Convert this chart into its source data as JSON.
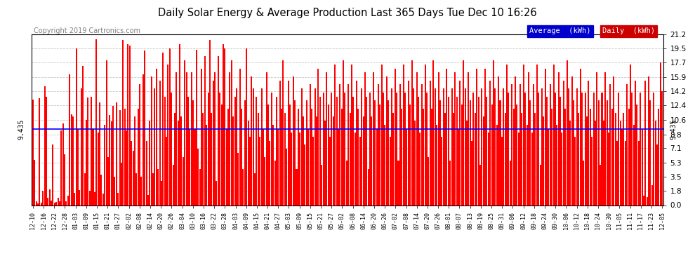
{
  "title": "Daily Solar Energy & Average Production Last 365 Days Tue Dec 10 16:26",
  "copyright": "Copyright 2019 Cartronics.com",
  "average_value": 9.435,
  "average_label": "9.435",
  "yticks": [
    0.0,
    1.8,
    3.5,
    5.3,
    7.1,
    8.8,
    10.6,
    12.4,
    14.2,
    15.9,
    17.7,
    19.5,
    21.2
  ],
  "ymax": 21.2,
  "bar_color": "#FF0000",
  "avg_line_color": "#0000FF",
  "background_color": "#FFFFFF",
  "plot_bg_color": "#FFFFFF",
  "grid_color": "#BBBBBB",
  "legend_avg_bg": "#0000CC",
  "legend_daily_bg": "#CC0000",
  "legend_text_color": "#FFFFFF",
  "title_color": "#000000",
  "copyright_color": "#808080",
  "avg_annot_color": "#000000",
  "xtick_labels": [
    "12-10",
    "12-16",
    "12-22",
    "12-28",
    "01-03",
    "01-09",
    "01-15",
    "01-21",
    "01-27",
    "02-02",
    "02-08",
    "02-14",
    "02-20",
    "02-26",
    "03-04",
    "03-10",
    "03-16",
    "03-22",
    "03-28",
    "04-03",
    "04-09",
    "04-15",
    "04-21",
    "04-27",
    "05-03",
    "05-09",
    "05-15",
    "05-21",
    "05-27",
    "06-02",
    "06-08",
    "06-14",
    "06-20",
    "06-26",
    "07-02",
    "07-08",
    "07-14",
    "07-20",
    "07-26",
    "08-01",
    "08-07",
    "08-13",
    "08-19",
    "08-25",
    "08-31",
    "09-06",
    "09-12",
    "09-18",
    "09-24",
    "09-30",
    "10-06",
    "10-12",
    "10-18",
    "10-24",
    "10-30",
    "11-05",
    "11-11",
    "11-17",
    "11-23",
    "12-05"
  ],
  "daily_values": [
    13.1,
    5.6,
    0.5,
    0.2,
    13.3,
    0.3,
    1.8,
    14.8,
    13.5,
    0.9,
    2.0,
    0.6,
    7.5,
    0.3,
    0.4,
    0.9,
    0.5,
    9.3,
    10.2,
    6.3,
    0.5,
    1.2,
    16.3,
    11.3,
    11.0,
    1.5,
    19.5,
    9.5,
    1.9,
    14.5,
    17.3,
    4.0,
    10.6,
    13.4,
    1.8,
    13.5,
    9.5,
    1.6,
    20.6,
    9.0,
    12.8,
    3.8,
    1.4,
    10.0,
    18.0,
    6.0,
    11.2,
    10.4,
    12.3,
    3.5,
    12.8,
    1.5,
    11.8,
    5.3,
    20.5,
    12.0,
    9.3,
    20.0,
    19.8,
    8.0,
    6.8,
    11.0,
    4.0,
    12.0,
    15.0,
    3.5,
    16.3,
    19.2,
    8.0,
    1.3,
    10.5,
    16.0,
    4.0,
    14.5,
    17.0,
    4.5,
    15.5,
    3.0,
    19.0,
    13.5,
    8.5,
    17.5,
    19.5,
    14.0,
    5.0,
    11.5,
    16.5,
    10.5,
    20.0,
    11.0,
    6.0,
    18.0,
    16.5,
    13.5,
    9.5,
    16.5,
    13.0,
    9.5,
    19.3,
    7.0,
    4.5,
    17.0,
    11.5,
    18.5,
    10.0,
    14.0,
    20.5,
    11.5,
    15.5,
    16.5,
    3.0,
    18.5,
    14.0,
    12.5,
    20.0,
    19.5,
    9.5,
    12.0,
    16.5,
    18.0,
    11.0,
    13.5,
    14.5,
    6.5,
    17.0,
    12.0,
    4.5,
    13.0,
    19.5,
    10.5,
    8.5,
    16.0,
    14.5,
    4.0,
    13.5,
    11.5,
    8.5,
    14.5,
    9.5,
    6.0,
    16.5,
    12.5,
    8.0,
    14.0,
    10.0,
    5.5,
    13.5,
    9.5,
    15.5,
    12.0,
    18.0,
    11.5,
    7.0,
    15.5,
    12.5,
    9.0,
    16.0,
    13.0,
    4.5,
    12.0,
    9.0,
    14.5,
    11.0,
    7.5,
    13.0,
    9.5,
    15.0,
    12.0,
    8.5,
    14.5,
    11.0,
    17.0,
    13.5,
    5.0,
    14.0,
    10.5,
    16.5,
    12.5,
    8.5,
    14.0,
    11.0,
    17.5,
    13.5,
    9.5,
    15.0,
    12.0,
    18.0,
    14.0,
    5.5,
    15.0,
    11.5,
    17.5,
    13.5,
    9.0,
    15.5,
    12.0,
    8.5,
    14.5,
    11.0,
    16.5,
    13.5,
    4.5,
    14.0,
    11.0,
    16.5,
    13.0,
    9.5,
    15.0,
    12.5,
    17.5,
    14.0,
    10.0,
    16.0,
    13.0,
    8.5,
    14.5,
    11.5,
    17.0,
    14.0,
    5.5,
    15.0,
    12.0,
    17.5,
    14.0,
    9.5,
    15.5,
    12.5,
    18.0,
    14.5,
    10.5,
    16.5,
    13.5,
    9.0,
    15.0,
    12.0,
    17.5,
    14.0,
    6.0,
    15.5,
    12.0,
    18.0,
    14.5,
    10.0,
    16.5,
    13.0,
    8.5,
    14.5,
    11.5,
    17.0,
    13.5,
    5.5,
    14.5,
    11.5,
    16.5,
    13.5,
    9.5,
    15.5,
    12.5,
    18.0,
    14.5,
    10.5,
    16.5,
    13.0,
    8.0,
    14.0,
    11.5,
    17.0,
    13.5,
    5.0,
    14.5,
    11.0,
    17.0,
    13.5,
    9.0,
    15.5,
    12.5,
    18.0,
    14.5,
    10.0,
    16.0,
    13.0,
    8.5,
    14.5,
    11.5,
    17.5,
    14.0,
    5.5,
    15.0,
    12.0,
    16.0,
    12.5,
    9.0,
    15.0,
    11.5,
    17.5,
    14.0,
    10.0,
    16.5,
    13.0,
    9.0,
    15.0,
    11.5,
    17.5,
    14.0,
    5.0,
    14.5,
    11.0,
    17.0,
    13.5,
    9.5,
    15.0,
    12.0,
    17.5,
    14.0,
    10.0,
    16.5,
    13.5,
    9.0,
    15.5,
    12.0,
    18.0,
    14.5,
    10.5,
    16.0,
    13.0,
    8.5,
    14.5,
    11.5,
    17.0,
    14.0,
    5.5,
    14.0,
    11.0,
    15.5,
    12.0,
    8.5,
    14.0,
    10.5,
    16.5,
    13.0,
    5.0,
    14.0,
    10.5,
    16.5,
    13.0,
    9.0,
    15.0,
    12.0,
    16.0,
    11.5,
    8.0,
    14.0,
    10.5,
    9.5,
    11.5,
    8.0,
    15.0,
    12.0,
    17.5,
    14.0,
    10.0,
    15.5,
    12.5,
    8.0,
    14.0,
    9.5,
    1.2,
    15.5,
    1.0,
    16.0,
    13.0,
    2.5,
    14.0,
    10.5,
    7.5,
    12.0,
    17.7,
    14.2
  ]
}
